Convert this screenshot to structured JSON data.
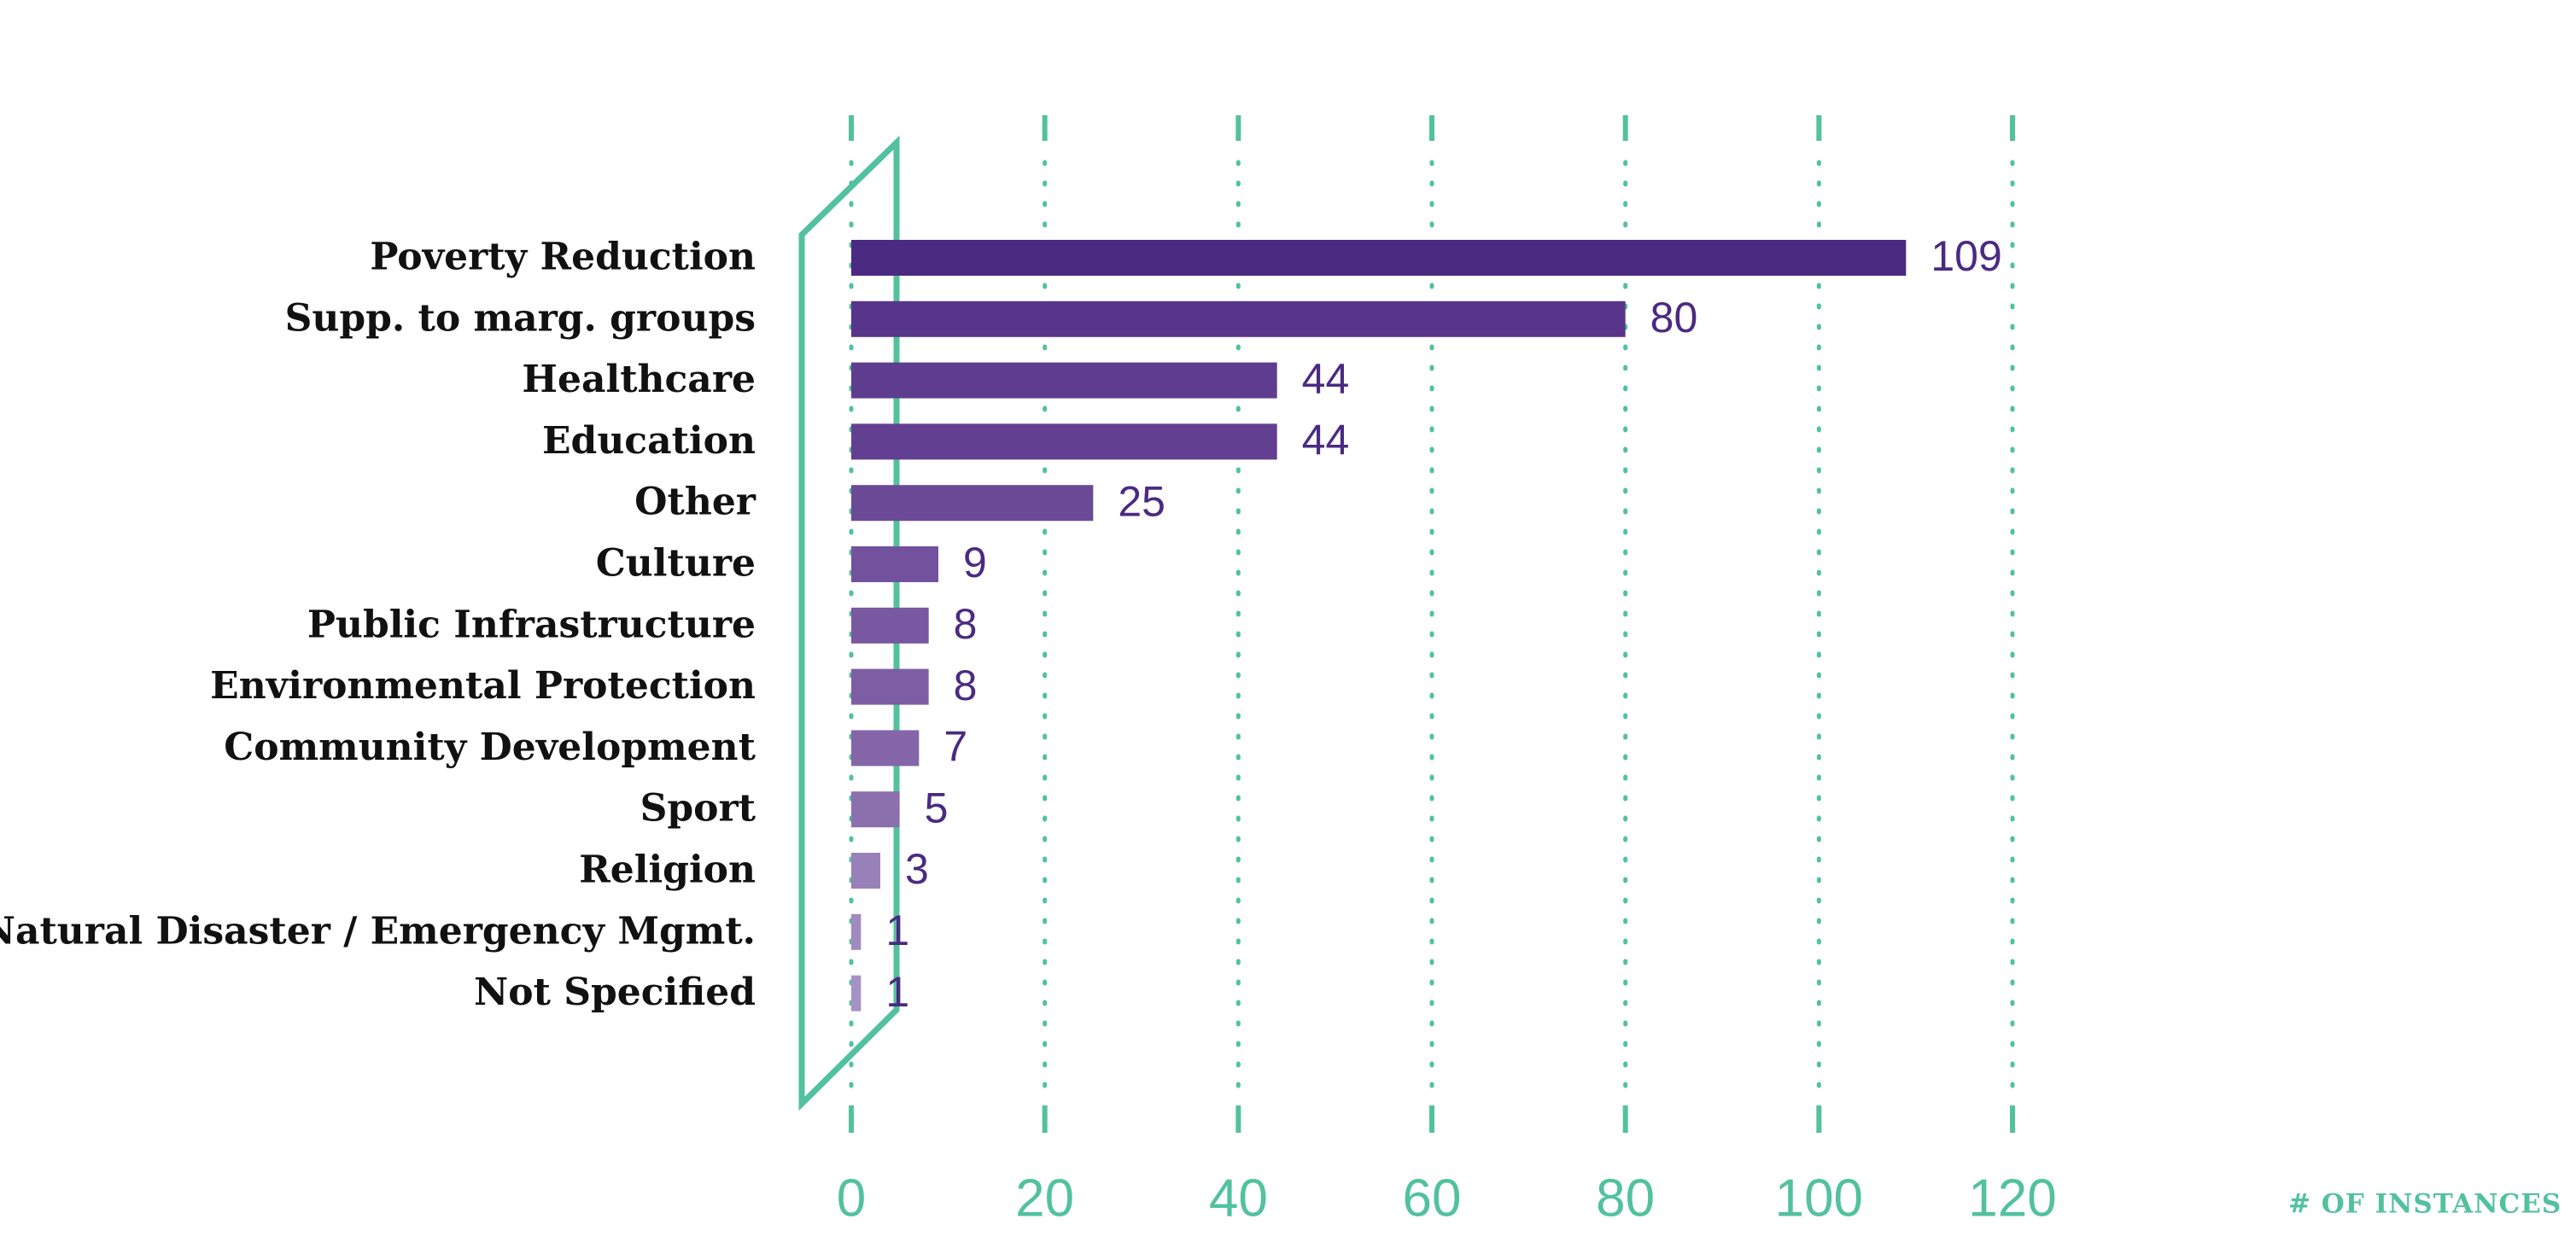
{
  "chart_data": {
    "type": "bar",
    "orientation": "horizontal",
    "categories": [
      "Poverty Reduction",
      "Supp. to marg. groups",
      "Healthcare",
      "Education",
      "Other",
      "Culture",
      "Public Infrastructure",
      "Environmental Protection",
      "Community Development",
      "Sport",
      "Religion",
      "Natural Disaster / Emergency Mgmt.",
      "Not Specified"
    ],
    "values": [
      109,
      80,
      44,
      44,
      25,
      9,
      8,
      8,
      7,
      5,
      3,
      1,
      1
    ],
    "colors": [
      "#4b2a82",
      "#56358a",
      "#5e3d90",
      "#633f91",
      "#6a4a97",
      "#72529c",
      "#7858a0",
      "#7d5ea4",
      "#8466a9",
      "#8c70ae",
      "#9880b8",
      "#a08abe",
      "#a692c6"
    ],
    "xlabel": "# OF INSTANCES",
    "xlim": [
      0,
      120
    ],
    "xticks": [
      0,
      20,
      40,
      60,
      80,
      100,
      120
    ],
    "grid": true,
    "grid_color": "#52c19e"
  }
}
